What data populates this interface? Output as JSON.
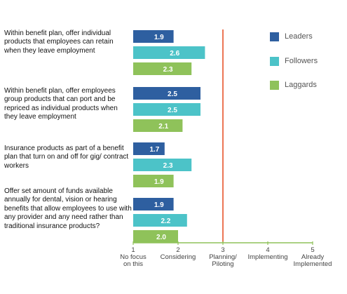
{
  "chart_data": {
    "type": "bar",
    "orientation": "horizontal",
    "categories": [
      "Within benefit plan, offer individual products that employees can retain when they leave employment",
      "Within benefit plan, offer employees group products that can port and be repriced as individual products when they leave employment",
      "Insurance products as part of a benefit plan that turn on and off for gig/ contract workers",
      "Offer set amount of funds available annually for dental, vision or hearing benefits that allow employees to use with any provider and any need rather than traditional insurance products?"
    ],
    "series": [
      {
        "name": "Leaders",
        "color": "#2e5fa0",
        "values": [
          1.9,
          2.5,
          1.7,
          1.9
        ],
        "labels": [
          "1.9",
          "2.5",
          "1.7",
          "1.9"
        ]
      },
      {
        "name": "Followers",
        "color": "#4cc3c8",
        "values": [
          2.6,
          2.5,
          2.3,
          2.2
        ],
        "labels": [
          "2.6",
          "2.5",
          "2.3",
          "2.2"
        ]
      },
      {
        "name": "Laggards",
        "color": "#8fc25a",
        "values": [
          2.3,
          2.1,
          1.9,
          2.0
        ],
        "labels": [
          "2.3",
          "2.1",
          "1.9",
          "2.0"
        ]
      }
    ],
    "x_axis": {
      "range": [
        1,
        5
      ],
      "ticks": [
        {
          "value": 1,
          "number": "1",
          "label": "No focus\non this"
        },
        {
          "value": 2,
          "number": "2",
          "label": "Considering"
        },
        {
          "value": 3,
          "number": "3",
          "label": "Planning/\nPiloting"
        },
        {
          "value": 4,
          "number": "4",
          "label": "Implementing"
        },
        {
          "value": 5,
          "number": "5",
          "label": "Already\nImplemented"
        }
      ],
      "axis_color": "#8fc25a"
    },
    "reference_line": {
      "value": 3,
      "color": "#e8542a"
    },
    "legend": {
      "position": "right"
    },
    "grid": false,
    "title": "",
    "xlabel": "",
    "ylabel": ""
  }
}
